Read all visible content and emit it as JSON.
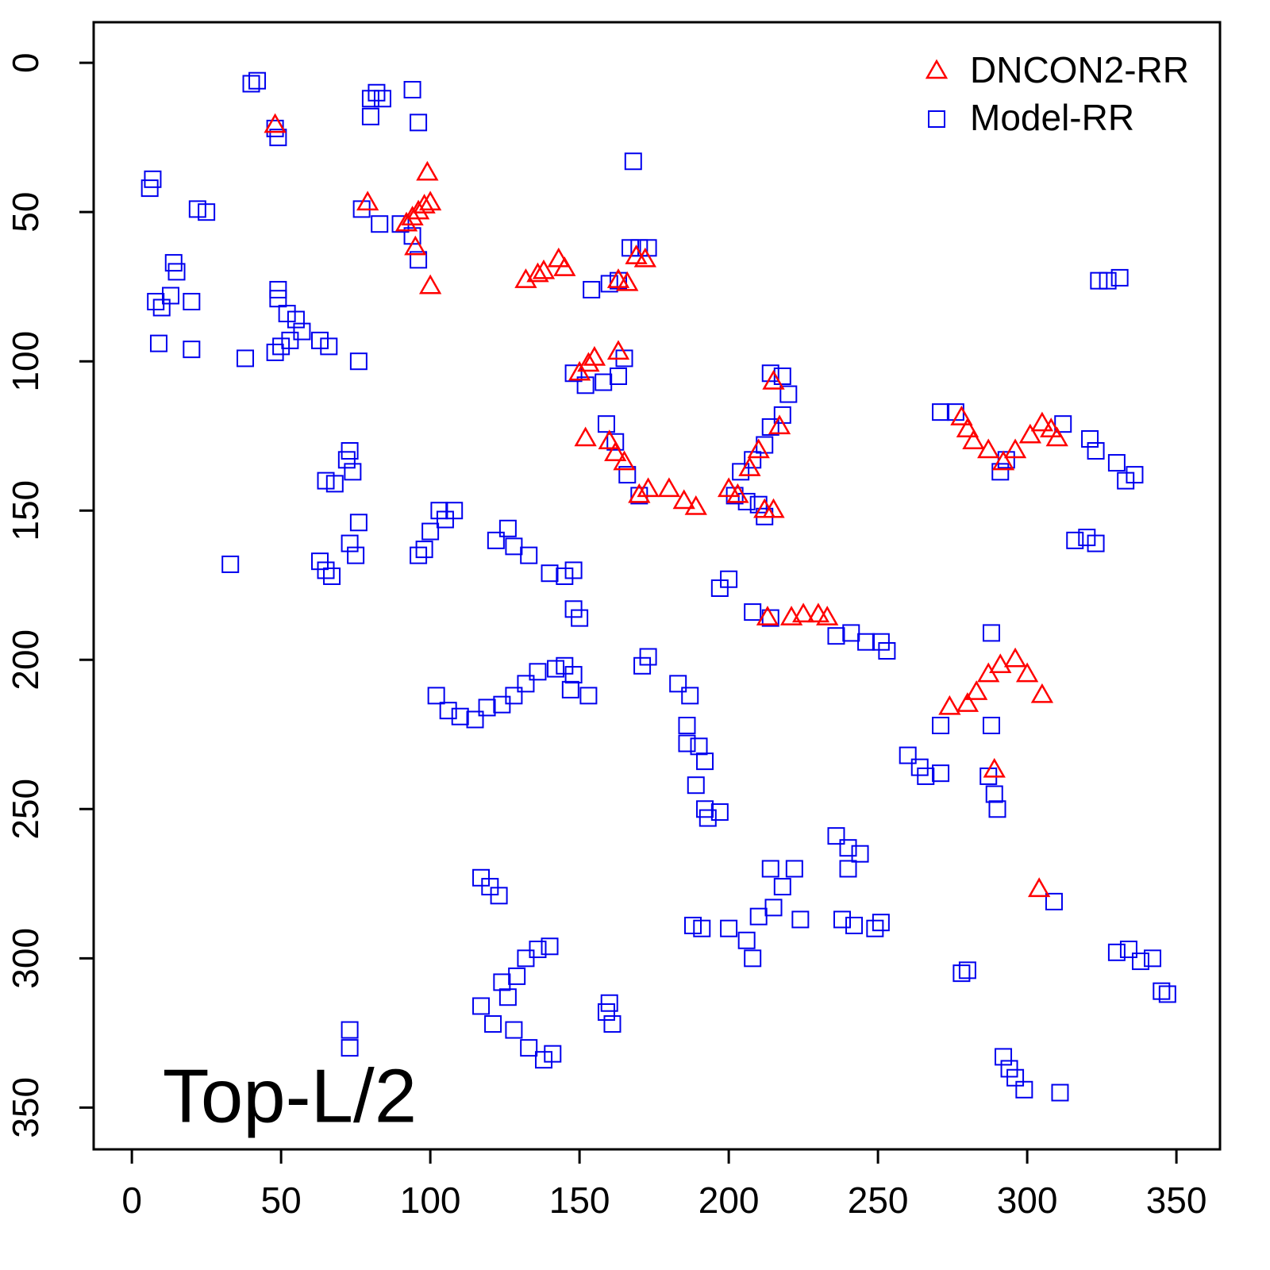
{
  "chart_data": {
    "type": "scatter",
    "annotation": "Top-L/2",
    "xlim": [
      -12.8,
      364.6
    ],
    "ylim": [
      364,
      -13.6
    ],
    "xticks": [
      0,
      50,
      100,
      150,
      200,
      250,
      300,
      350
    ],
    "yticks": [
      0,
      50,
      100,
      150,
      200,
      250,
      300,
      350
    ],
    "legend": "top-right",
    "series": [
      {
        "name": "DNCON2-RR",
        "color": "#ff0000",
        "marker": "triangle",
        "x": [
          48,
          79,
          99,
          95,
          100,
          92,
          94,
          96,
          98,
          100,
          132,
          136,
          138,
          143,
          145,
          163,
          166,
          169,
          172,
          150,
          153,
          155,
          163,
          152,
          160,
          162,
          165,
          170,
          173,
          180,
          185,
          189,
          200,
          203,
          207,
          210,
          215,
          217,
          212,
          215,
          213,
          221,
          225,
          230,
          233,
          278,
          280,
          282,
          287,
          292,
          296,
          301,
          305,
          308,
          310,
          274,
          280,
          283,
          287,
          291,
          296,
          300,
          305,
          289,
          304
        ],
        "values": [
          21,
          47,
          37,
          62,
          75,
          54,
          52,
          50,
          48,
          47,
          73,
          71,
          70,
          66,
          69,
          73,
          74,
          65,
          66,
          104,
          101,
          99,
          97,
          126,
          127,
          131,
          134,
          145,
          143,
          143,
          147,
          149,
          143,
          145,
          136,
          130,
          107,
          122,
          150,
          150,
          186,
          186,
          185,
          185,
          186,
          119,
          123,
          127,
          130,
          134,
          130,
          125,
          121,
          123,
          126,
          216,
          215,
          211,
          205,
          202,
          200,
          205,
          212,
          237,
          277
        ]
      },
      {
        "name": "Model-RR",
        "color": "#0000ee",
        "marker": "square",
        "x": [
          40,
          42,
          80,
          82,
          84,
          80,
          94,
          96,
          48,
          49,
          168,
          6,
          7,
          22,
          25,
          77,
          83,
          90,
          94,
          96,
          14,
          15,
          8,
          10,
          13,
          20,
          9,
          20,
          49,
          49,
          52,
          55,
          38,
          48,
          50,
          53,
          57,
          63,
          66,
          76,
          154,
          160,
          163,
          167,
          170,
          173,
          324,
          327,
          331,
          148,
          152,
          158,
          163,
          165,
          214,
          218,
          220,
          218,
          214,
          212,
          208,
          204,
          202,
          206,
          210,
          212,
          159,
          162,
          166,
          170,
          271,
          276,
          291,
          293,
          312,
          321,
          323,
          330,
          333,
          336,
          316,
          320,
          323,
          73,
          72,
          74,
          65,
          68,
          76,
          73,
          75,
          33,
          63,
          65,
          67,
          103,
          105,
          100,
          98,
          96,
          108,
          126,
          122,
          128,
          133,
          140,
          145,
          148,
          148,
          150,
          200,
          197,
          208,
          214,
          236,
          241,
          246,
          251,
          253,
          173,
          171,
          183,
          187,
          186,
          186,
          190,
          192,
          189,
          192,
          197,
          193,
          102,
          106,
          110,
          115,
          119,
          124,
          128,
          132,
          136,
          142,
          145,
          148,
          147,
          153,
          260,
          264,
          266,
          271,
          271,
          288,
          288,
          287,
          289,
          290,
          309,
          236,
          240,
          244,
          240,
          117,
          120,
          123,
          136,
          140,
          132,
          129,
          124,
          126,
          117,
          121,
          128,
          133,
          138,
          141,
          159,
          161,
          160,
          191,
          200,
          206,
          208,
          210,
          215,
          218,
          214,
          222,
          224,
          238,
          242,
          249,
          251,
          278,
          280,
          330,
          334,
          338,
          342,
          345,
          347,
          292,
          294,
          296,
          299,
          311,
          73,
          73,
          188
        ],
        "values": [
          7,
          6,
          12,
          10,
          12,
          18,
          9,
          20,
          22,
          25,
          33,
          42,
          39,
          49,
          50,
          49,
          54,
          54,
          58,
          66,
          67,
          70,
          80,
          82,
          78,
          80,
          94,
          96,
          76,
          79,
          84,
          86,
          99,
          97,
          95,
          93,
          90,
          93,
          95,
          100,
          76,
          74,
          73,
          62,
          62,
          62,
          73,
          73,
          72,
          104,
          108,
          107,
          105,
          99,
          104,
          105,
          111,
          118,
          122,
          128,
          133,
          137,
          145,
          147,
          148,
          152,
          121,
          127,
          138,
          145,
          117,
          117,
          137,
          133,
          121,
          126,
          130,
          134,
          140,
          138,
          160,
          159,
          161,
          130,
          133,
          137,
          140,
          141,
          154,
          161,
          165,
          168,
          167,
          170,
          172,
          150,
          153,
          157,
          163,
          165,
          150,
          156,
          160,
          162,
          165,
          171,
          172,
          170,
          183,
          186,
          173,
          176,
          184,
          186,
          192,
          191,
          194,
          194,
          197,
          199,
          202,
          208,
          212,
          222,
          228,
          229,
          234,
          242,
          250,
          251,
          253,
          212,
          217,
          219,
          220,
          216,
          215,
          212,
          208,
          204,
          203,
          202,
          205,
          210,
          212,
          232,
          236,
          239,
          238,
          222,
          222,
          191,
          239,
          245,
          250,
          281,
          259,
          263,
          265,
          270,
          273,
          276,
          279,
          297,
          296,
          300,
          306,
          308,
          313,
          316,
          322,
          324,
          330,
          334,
          332,
          318,
          322,
          315,
          290,
          290,
          294,
          300,
          286,
          283,
          276,
          270,
          270,
          287,
          287,
          289,
          290,
          288,
          305,
          304,
          298,
          297,
          301,
          300,
          311,
          312,
          333,
          337,
          340,
          344,
          345,
          330,
          324,
          289
        ]
      }
    ]
  }
}
